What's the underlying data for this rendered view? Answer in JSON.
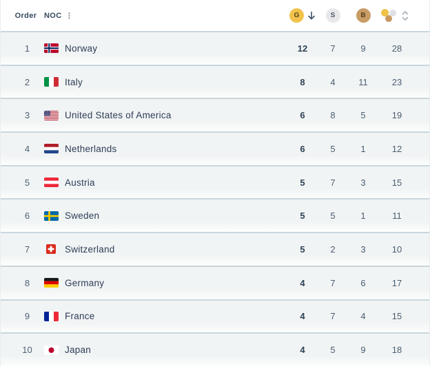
{
  "header": {
    "order_label": "Order",
    "noc_label": "NOC",
    "noc_menu_icon": "kebab-menu-icon",
    "gold_label": "G",
    "silver_label": "S",
    "bronze_label": "B",
    "gold_sort_state": "descending",
    "total_icon": "total-medals-icon",
    "total_sort_icon": "sort-carets-icon"
  },
  "colors": {
    "gold": "#f2c34c",
    "silver": "#e8e8eb",
    "bronze": "#c99c66",
    "row_background": "#f1f4f4",
    "row_divider": "#c3d1d8",
    "text_primary": "#2d3d57",
    "text_secondary": "#4a5d71"
  },
  "rows": [
    {
      "order": "1",
      "noc": "Norway",
      "flag": "norway",
      "gold": "12",
      "silver": "7",
      "bronze": "9",
      "total": "28"
    },
    {
      "order": "2",
      "noc": "Italy",
      "flag": "italy",
      "gold": "8",
      "silver": "4",
      "bronze": "11",
      "total": "23"
    },
    {
      "order": "3",
      "noc": "United States of America",
      "flag": "usa",
      "gold": "6",
      "silver": "8",
      "bronze": "5",
      "total": "19"
    },
    {
      "order": "4",
      "noc": "Netherlands",
      "flag": "netherlands",
      "gold": "6",
      "silver": "5",
      "bronze": "1",
      "total": "12"
    },
    {
      "order": "5",
      "noc": "Austria",
      "flag": "austria",
      "gold": "5",
      "silver": "7",
      "bronze": "3",
      "total": "15"
    },
    {
      "order": "6",
      "noc": "Sweden",
      "flag": "sweden",
      "gold": "5",
      "silver": "5",
      "bronze": "1",
      "total": "11"
    },
    {
      "order": "7",
      "noc": "Switzerland",
      "flag": "switzerland",
      "gold": "5",
      "silver": "2",
      "bronze": "3",
      "total": "10"
    },
    {
      "order": "8",
      "noc": "Germany",
      "flag": "germany",
      "gold": "4",
      "silver": "7",
      "bronze": "6",
      "total": "17"
    },
    {
      "order": "9",
      "noc": "France",
      "flag": "france",
      "gold": "4",
      "silver": "7",
      "bronze": "4",
      "total": "15"
    },
    {
      "order": "10",
      "noc": "Japan",
      "flag": "japan",
      "gold": "4",
      "silver": "5",
      "bronze": "9",
      "total": "18"
    }
  ]
}
